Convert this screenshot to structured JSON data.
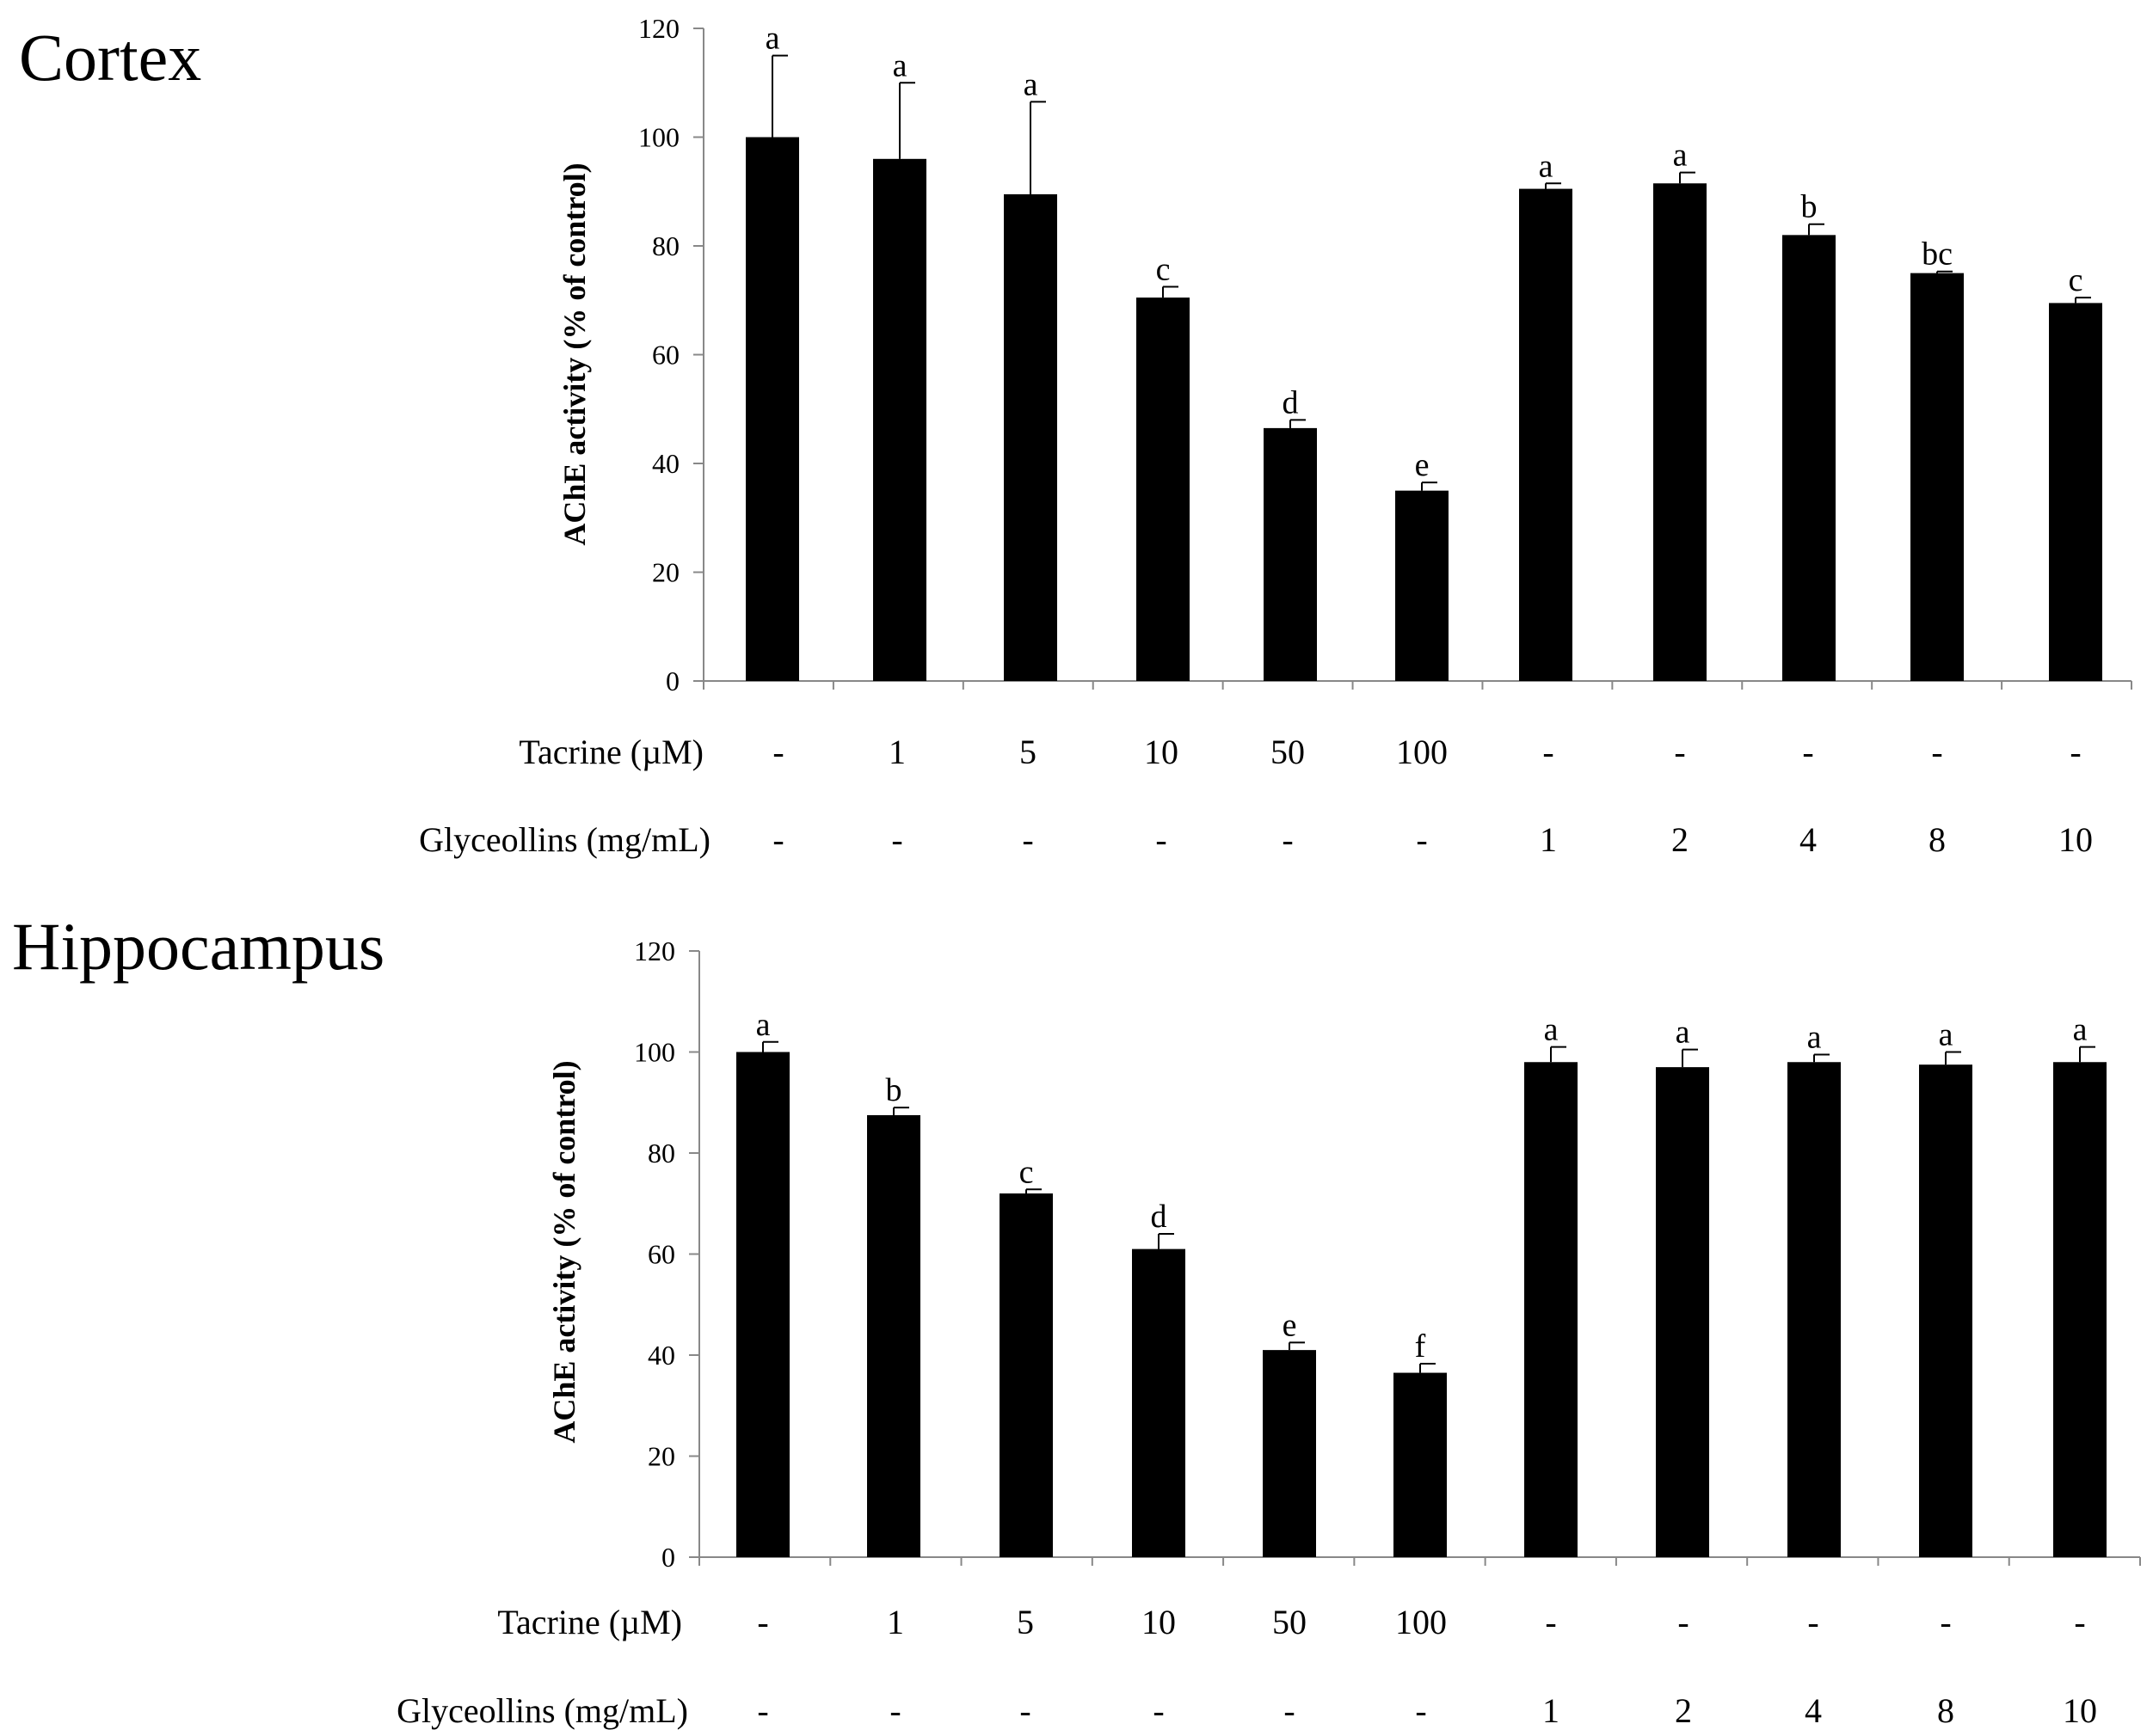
{
  "chart_data": [
    {
      "type": "bar",
      "panel_title": "Cortex",
      "ylabel": "AChE activity (% of control)",
      "ylim": [
        0,
        120
      ],
      "yticks": [
        "0",
        "20",
        "40",
        "60",
        "80",
        "100",
        "120"
      ],
      "tick_values": [
        0,
        20,
        40,
        60,
        80,
        100,
        120
      ],
      "values": [
        100,
        96,
        89.5,
        70.5,
        46.5,
        35,
        90.5,
        91.5,
        82,
        75,
        69.5
      ],
      "errors": [
        15,
        14,
        17,
        2,
        1.5,
        1.5,
        1,
        2,
        2,
        0.3,
        1
      ],
      "letters": [
        "a",
        "a",
        "a",
        "c",
        "d",
        "e",
        "a",
        "a",
        "b",
        "bc",
        "c"
      ],
      "row1_label": "Tacrine (µM)",
      "row1_values": [
        "-",
        "1",
        "5",
        "10",
        "50",
        "100",
        "-",
        "-",
        "-",
        "-",
        "-"
      ],
      "row2_label": "Glyceollins (mg/mL)",
      "row2_values": [
        "-",
        "-",
        "-",
        "-",
        "-",
        "-",
        "1",
        "2",
        "4",
        "8",
        "10"
      ]
    },
    {
      "type": "bar",
      "panel_title": "Hippocampus",
      "ylabel": "AChE activity (% of control)",
      "ylim": [
        0,
        120
      ],
      "yticks": [
        "0",
        "20",
        "40",
        "60",
        "80",
        "100",
        "120"
      ],
      "tick_values": [
        0,
        20,
        40,
        60,
        80,
        100,
        120
      ],
      "values": [
        100,
        87.5,
        72,
        61,
        41,
        36.5,
        98,
        97,
        98,
        97.5,
        98
      ],
      "errors": [
        2,
        1.5,
        0.8,
        3,
        1.5,
        1.8,
        3,
        3.5,
        1.5,
        2.5,
        3
      ],
      "letters": [
        "a",
        "b",
        "c",
        "d",
        "e",
        "f",
        "a",
        "a",
        "a",
        "a",
        "a"
      ],
      "row1_label": "Tacrine (µM)",
      "row1_values": [
        "-",
        "1",
        "5",
        "10",
        "50",
        "100",
        "-",
        "-",
        "-",
        "-",
        "-"
      ],
      "row2_label": "Glyceollins (mg/mL)",
      "row2_values": [
        "-",
        "-",
        "-",
        "-",
        "-",
        "-",
        "1",
        "2",
        "4",
        "8",
        "10"
      ]
    }
  ]
}
